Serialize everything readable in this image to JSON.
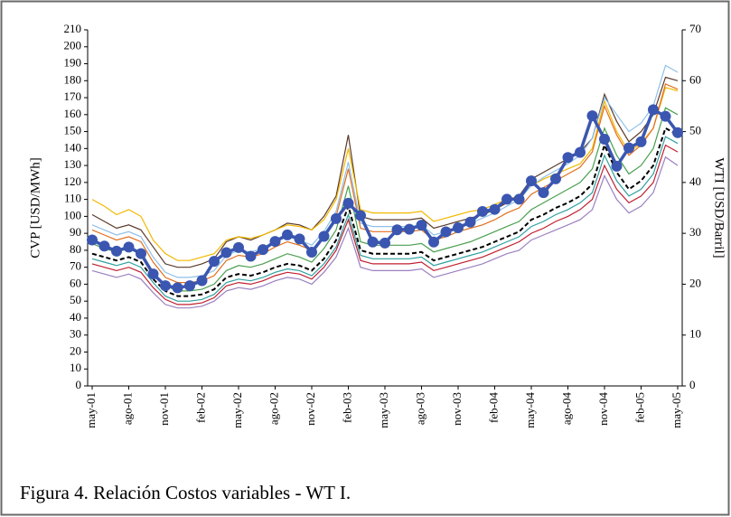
{
  "chart_data": {
    "type": "line",
    "caption": "Figura 4. Relación Costos variables - WT I.",
    "y_label": "CVP [USD/MWh]",
    "y2_label": "WTI [USD/Barril]",
    "categories": [
      "may-01",
      null,
      null,
      "ago-01",
      null,
      null,
      "nov-01",
      null,
      null,
      "feb-02",
      null,
      null,
      "may-02",
      null,
      null,
      "ago-02",
      null,
      null,
      "nov-02",
      null,
      null,
      "feb-03",
      null,
      null,
      "may-03",
      null,
      null,
      "ago-03",
      null,
      null,
      "nov-03",
      null,
      null,
      "feb-04",
      null,
      null,
      "may-04",
      null,
      null,
      "ago-04",
      null,
      null,
      "nov-04",
      null,
      null,
      "feb-05",
      null,
      null,
      "may-05"
    ],
    "ylim": [
      0,
      210
    ],
    "yticks": [
      0,
      10,
      20,
      30,
      40,
      50,
      60,
      70,
      80,
      90,
      100,
      110,
      120,
      130,
      140,
      150,
      160,
      170,
      180,
      190,
      200,
      210
    ],
    "y2lim": [
      0,
      70
    ],
    "y2ticks": [
      0,
      10,
      20,
      30,
      40,
      50,
      60,
      70
    ],
    "series": [
      {
        "color": "#5a3a2a",
        "values": [
          101,
          97,
          93,
          95,
          92,
          82,
          72,
          70,
          70,
          72,
          75,
          85,
          88,
          86,
          89,
          92,
          96,
          95,
          92,
          100,
          112,
          148,
          100,
          98,
          98,
          98,
          98,
          99,
          93,
          95,
          97,
          99,
          101,
          104,
          108,
          112,
          122,
          126,
          130,
          134,
          138,
          146,
          172,
          156,
          144,
          150,
          160,
          182,
          180
        ]
      },
      {
        "color": "#f2b800",
        "values": [
          110,
          106,
          101,
          104,
          100,
          86,
          78,
          74,
          74,
          76,
          78,
          86,
          88,
          87,
          89,
          92,
          95,
          94,
          92,
          98,
          110,
          140,
          104,
          102,
          102,
          102,
          102,
          103,
          97,
          99,
          101,
          103,
          104,
          107,
          110,
          112,
          118,
          122,
          125,
          128,
          131,
          140,
          168,
          150,
          138,
          143,
          152,
          176,
          174
        ]
      },
      {
        "color": "#8fc0e8",
        "values": [
          95,
          92,
          89,
          91,
          88,
          76,
          67,
          64,
          64,
          65,
          68,
          77,
          80,
          79,
          81,
          85,
          88,
          86,
          83,
          91,
          103,
          132,
          96,
          94,
          94,
          94,
          94,
          95,
          89,
          91,
          94,
          96,
          99,
          102,
          106,
          110,
          118,
          123,
          127,
          131,
          136,
          146,
          170,
          160,
          150,
          155,
          165,
          189,
          185
        ]
      },
      {
        "color": "#e07020",
        "values": [
          92,
          89,
          86,
          88,
          85,
          73,
          64,
          61,
          61,
          62,
          65,
          74,
          77,
          76,
          78,
          82,
          85,
          83,
          80,
          88,
          100,
          128,
          93,
          91,
          91,
          91,
          91,
          92,
          86,
          88,
          91,
          93,
          95,
          98,
          102,
          105,
          113,
          117,
          121,
          125,
          129,
          138,
          165,
          148,
          136,
          142,
          152,
          178,
          175
        ]
      },
      {
        "color": "#4aa050",
        "values": [
          84,
          81,
          79,
          81,
          78,
          67,
          59,
          56,
          56,
          57,
          60,
          68,
          71,
          70,
          72,
          75,
          78,
          76,
          73,
          81,
          92,
          118,
          85,
          83,
          83,
          83,
          83,
          84,
          79,
          81,
          83,
          85,
          88,
          91,
          94,
          97,
          104,
          108,
          112,
          116,
          120,
          128,
          152,
          136,
          125,
          130,
          140,
          164,
          160
        ]
      },
      {
        "color": "#000000",
        "dashed": true,
        "values": [
          78,
          76,
          74,
          76,
          73,
          63,
          56,
          53,
          53,
          54,
          57,
          64,
          66,
          65,
          67,
          70,
          72,
          71,
          68,
          75,
          86,
          106,
          80,
          78,
          78,
          78,
          78,
          79,
          74,
          76,
          78,
          80,
          82,
          85,
          88,
          91,
          98,
          101,
          105,
          108,
          112,
          119,
          142,
          126,
          116,
          121,
          130,
          152,
          148
        ]
      },
      {
        "color": "#30a0a0",
        "values": [
          75,
          73,
          71,
          73,
          70,
          61,
          53,
          50,
          50,
          51,
          54,
          61,
          63,
          62,
          64,
          67,
          69,
          68,
          65,
          72,
          82,
          101,
          77,
          75,
          75,
          75,
          75,
          76,
          71,
          73,
          75,
          77,
          79,
          82,
          85,
          88,
          94,
          97,
          101,
          104,
          108,
          114,
          136,
          121,
          112,
          116,
          125,
          147,
          143
        ]
      },
      {
        "color": "#c02030",
        "values": [
          72,
          70,
          68,
          70,
          67,
          58,
          51,
          48,
          48,
          49,
          52,
          59,
          61,
          60,
          62,
          65,
          67,
          66,
          63,
          70,
          80,
          98,
          74,
          72,
          72,
          72,
          72,
          73,
          68,
          70,
          72,
          74,
          76,
          79,
          82,
          85,
          90,
          93,
          97,
          100,
          104,
          110,
          130,
          116,
          108,
          112,
          120,
          142,
          138
        ]
      },
      {
        "color": "#9a80c0",
        "values": [
          68,
          66,
          64,
          66,
          63,
          55,
          48,
          46,
          46,
          47,
          50,
          56,
          58,
          57,
          59,
          62,
          64,
          63,
          60,
          67,
          76,
          93,
          70,
          68,
          68,
          68,
          68,
          69,
          64,
          66,
          68,
          70,
          72,
          75,
          78,
          80,
          86,
          89,
          92,
          95,
          98,
          104,
          124,
          110,
          102,
          106,
          114,
          135,
          130
        ]
      },
      {
        "color": "#3a56b0",
        "axis": "y2",
        "markers": true,
        "values": [
          28.7,
          27.5,
          26.5,
          27.3,
          26,
          22,
          19.7,
          19.3,
          19.7,
          20.7,
          24.5,
          26.2,
          27.2,
          25.5,
          26.8,
          28.4,
          29.7,
          28.9,
          26.3,
          29.4,
          32.9,
          35.9,
          33.5,
          28.3,
          28.1,
          30.7,
          30.8,
          31.6,
          28.3,
          30.3,
          31.1,
          32.2,
          34.3,
          34.7,
          36.7,
          36.7,
          40.3,
          38,
          40.7,
          44.9,
          45.9,
          53.1,
          48.5,
          43.2,
          46.8,
          48,
          54.3,
          53,
          49.8
        ]
      }
    ]
  }
}
